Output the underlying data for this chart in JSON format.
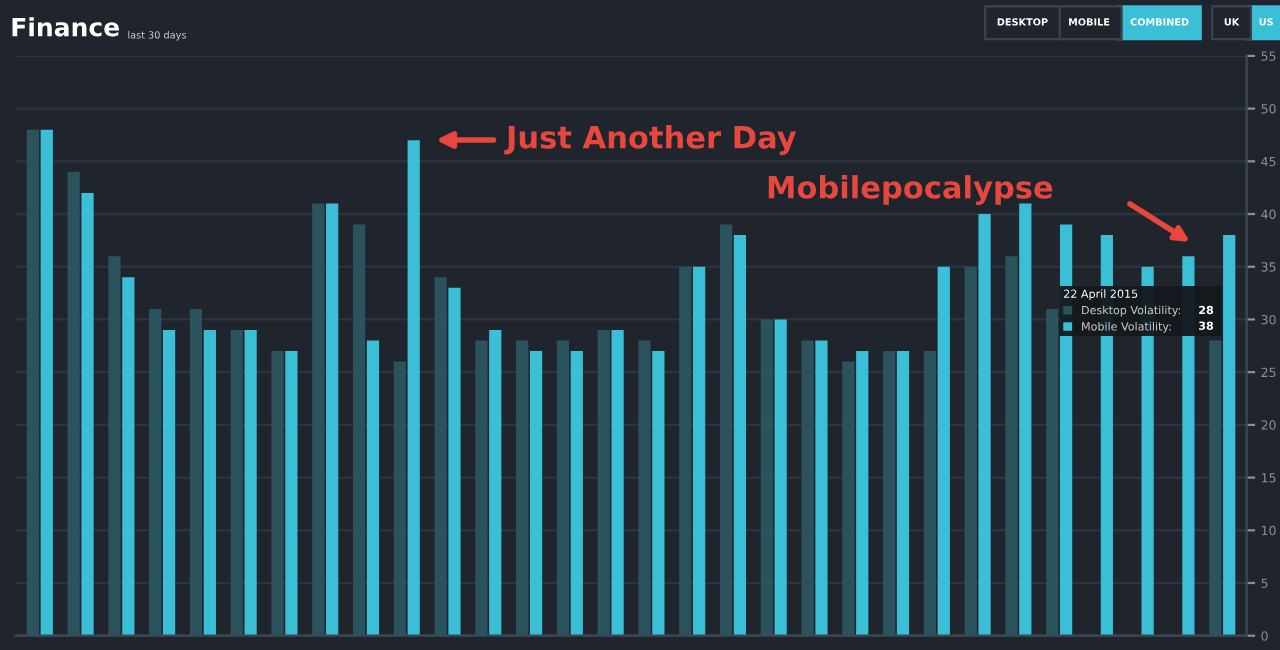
{
  "chart_data": {
    "type": "bar",
    "title": "Finance",
    "subtitle": "last 30 days",
    "categories": [
      null,
      null,
      null,
      null,
      null,
      null,
      null,
      null,
      null,
      null,
      null,
      null,
      null,
      null,
      null,
      null,
      null,
      null,
      null,
      null,
      null,
      null,
      null,
      null,
      null,
      null,
      null,
      null,
      null,
      null
    ],
    "series": [
      {
        "name": "Desktop Volatility:",
        "color": "#2a535e",
        "values": [
          48,
          44,
          36,
          31,
          31,
          29,
          27,
          41,
          39,
          26,
          34,
          28,
          28,
          28,
          29,
          28,
          35,
          39,
          30,
          28,
          26,
          27,
          27,
          35,
          36,
          31,
          null,
          null,
          null,
          28
        ]
      },
      {
        "name": "Mobile Volatility:",
        "color": "#3bbfd6",
        "values": [
          48,
          42,
          34,
          29,
          29,
          29,
          27,
          41,
          28,
          47,
          33,
          29,
          27,
          27,
          29,
          27,
          35,
          38,
          30,
          28,
          27,
          27,
          35,
          40,
          41,
          39,
          38,
          35,
          36,
          38
        ]
      }
    ],
    "ylim": [
      0,
      55
    ],
    "yticks": [
      0,
      5,
      10,
      15,
      20,
      25,
      30,
      35,
      40,
      45,
      50,
      55
    ],
    "grid": "y",
    "legend": "right",
    "legend_title": "22 April 2015",
    "annotations": [
      "DESKTOP",
      "MOBILE",
      "COMBINED",
      "UK",
      "US",
      "Just Another Day",
      "Mobilepocalypse",
      "28",
      "38"
    ]
  }
}
